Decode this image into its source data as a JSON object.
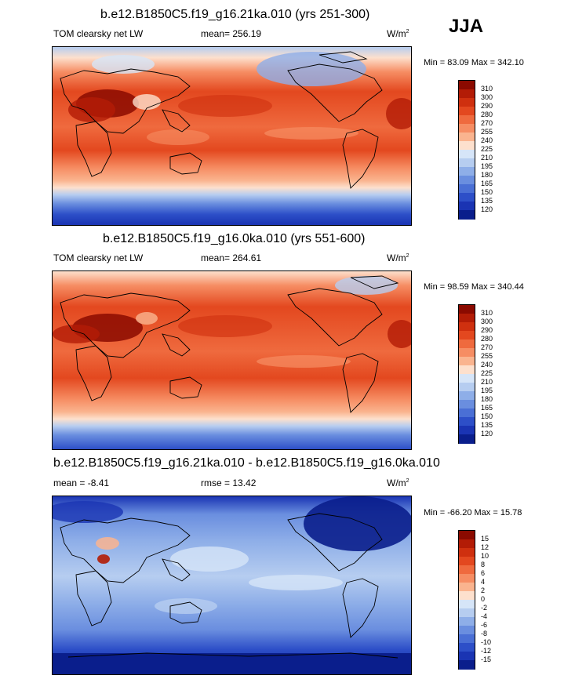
{
  "season": "JJA",
  "panels": [
    {
      "title": "b.e12.B1850C5.f19_g16.21ka.010 (yrs 251-300)",
      "left_label": "TOM clearsky net LW",
      "center_label": "mean= 256.19",
      "units_base": "W/m",
      "units_sup": "2",
      "minmax": "Min =  83.09 Max = 342.10",
      "levels": [
        "310",
        "300",
        "290",
        "280",
        "270",
        "255",
        "240",
        "225",
        "210",
        "195",
        "180",
        "165",
        "150",
        "135",
        "120"
      ],
      "colors": [
        "#8b0a00",
        "#b31c06",
        "#cf300f",
        "#e3481f",
        "#ef6a3e",
        "#f68d63",
        "#fab48f",
        "#fde0cd",
        "#d6e5f8",
        "#b6cdf0",
        "#8eaee8",
        "#6a8edf",
        "#4a6fd5",
        "#2d4fc8",
        "#1a34b3",
        "#0a1e8c"
      ]
    },
    {
      "title": "b.e12.B1850C5.f19_g16.0ka.010 (yrs 551-600)",
      "left_label": "TOM clearsky net LW",
      "center_label": "mean= 264.61",
      "units_base": "W/m",
      "units_sup": "2",
      "minmax": "Min =  98.59 Max = 340.44",
      "levels": [
        "310",
        "300",
        "290",
        "280",
        "270",
        "255",
        "240",
        "225",
        "210",
        "195",
        "180",
        "165",
        "150",
        "135",
        "120"
      ],
      "colors": [
        "#8b0a00",
        "#b31c06",
        "#cf300f",
        "#e3481f",
        "#ef6a3e",
        "#f68d63",
        "#fab48f",
        "#fde0cd",
        "#d6e5f8",
        "#b6cdf0",
        "#8eaee8",
        "#6a8edf",
        "#4a6fd5",
        "#2d4fc8",
        "#1a34b3",
        "#0a1e8c"
      ]
    },
    {
      "title": "b.e12.B1850C5.f19_g16.21ka.010 - b.e12.B1850C5.f19_g16.0ka.010",
      "left_label": "mean =  -8.41",
      "center_label": "rmse =  13.42",
      "units_base": "W/m",
      "units_sup": "2",
      "minmax": "Min = -66.20 Max =  15.78",
      "levels": [
        "15",
        "12",
        "10",
        "8",
        "6",
        "4",
        "2",
        "0",
        "-2",
        "-4",
        "-6",
        "-8",
        "-10",
        "-12",
        "-15"
      ],
      "colors": [
        "#8b0a00",
        "#b31c06",
        "#cf300f",
        "#e3481f",
        "#ef6a3e",
        "#f68d63",
        "#fab48f",
        "#fde0cd",
        "#d6e5f8",
        "#b6cdf0",
        "#8eaee8",
        "#6a8edf",
        "#4a6fd5",
        "#2d4fc8",
        "#1a34b3",
        "#0a1e8c"
      ]
    }
  ]
}
